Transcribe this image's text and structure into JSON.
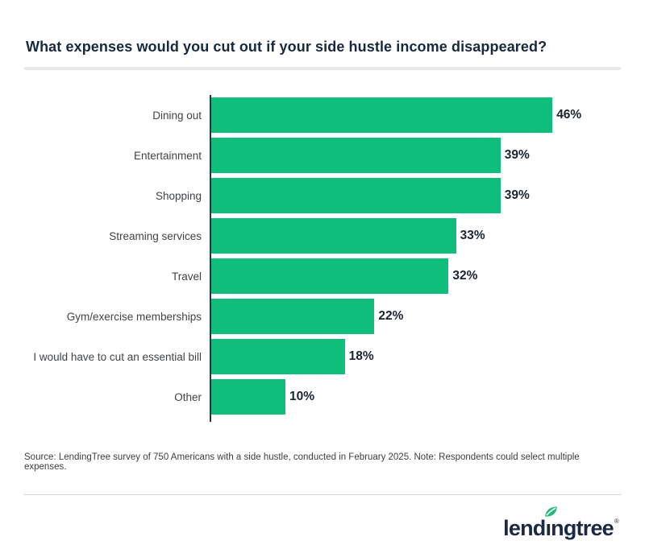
{
  "title": "What expenses would you cut out if your side hustle income disappeared?",
  "chart_data": {
    "type": "bar",
    "orientation": "horizontal",
    "categories": [
      "Dining out",
      "Entertainment",
      "Shopping",
      "Streaming services",
      "Travel",
      "Gym/exercise memberships",
      "I would have to cut an essential bill",
      "Other"
    ],
    "values": [
      46,
      39,
      39,
      33,
      32,
      22,
      18,
      10
    ],
    "value_suffix": "%",
    "bar_color": "#0FBE7B",
    "xlim": [
      0,
      50
    ],
    "grid": false,
    "legend": false,
    "value_labels_position": "end-of-bar"
  },
  "source_note": "Source: LendingTree survey of 750 Americans with a side hustle, conducted in February 2025. Note: Respondents could select multiple expenses.",
  "logo": {
    "text": "lendingtree",
    "trademark": "®"
  },
  "colors": {
    "title": "#18283F",
    "category_label": "#3F4347",
    "value_label": "#1A2433",
    "axis": "#2F3237",
    "bar_green": "#0FBE7B",
    "divider_top": "#E8E8E8",
    "divider_bottom": "#D4D4D4",
    "source_text": "#3D3D3D",
    "logo_navy": "#1B2944",
    "leaf_green": "#23B877",
    "background": "#FFFFFF"
  }
}
